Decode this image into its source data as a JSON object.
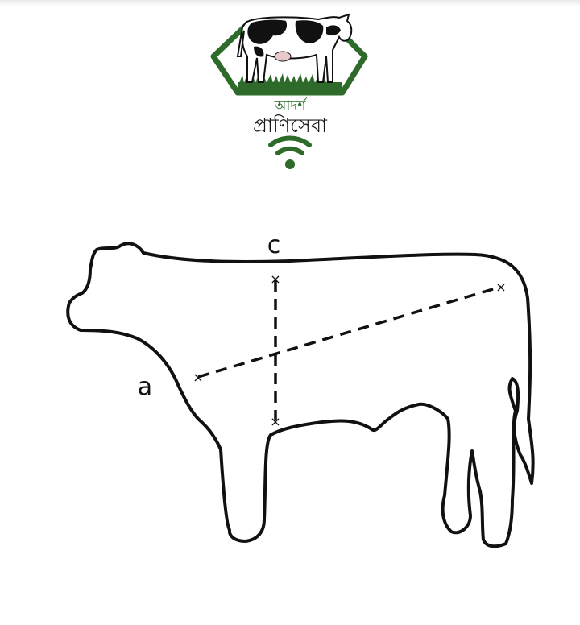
{
  "logo": {
    "line1": "আদর্শ",
    "line2": "প্রাণিসেবা",
    "brand_green": "#2e6b2a",
    "icons": [
      "cow-illustration",
      "wifi-icon"
    ]
  },
  "diagram": {
    "label_c": "c",
    "label_a": "a",
    "marker": "×",
    "outline_color": "#111111"
  }
}
